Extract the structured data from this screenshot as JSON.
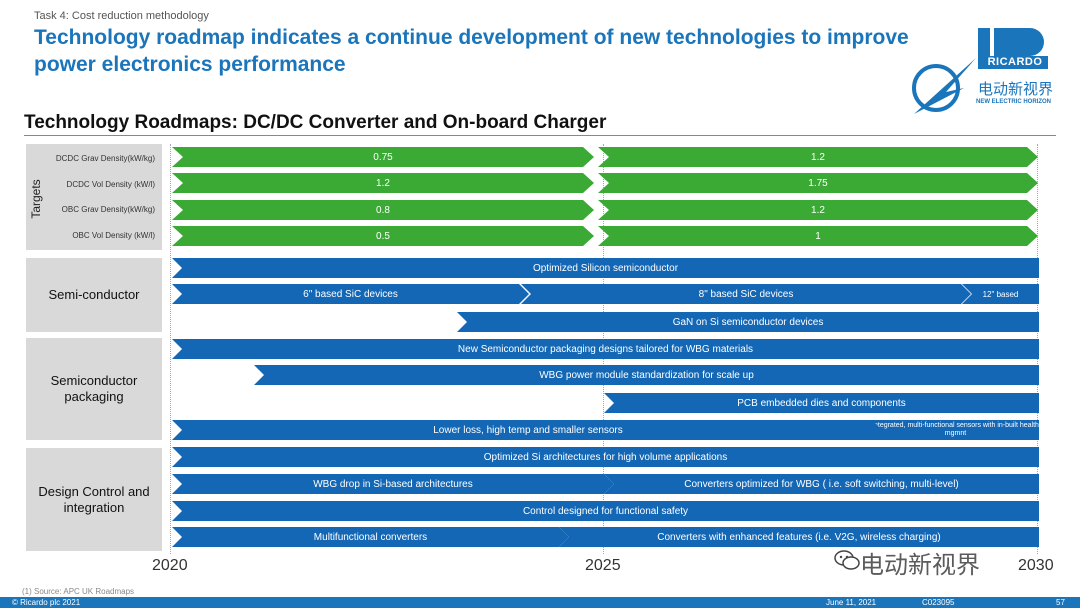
{
  "header": {
    "task": "Task 4: Cost reduction methodology",
    "headline": "Technology roadmap indicates a continue development of new technologies to improve power electronics performance",
    "subtitle": "Technology Roadmaps: DC/DC Converter and On-board Charger"
  },
  "logo": {
    "brand": "RICARDO",
    "chinese": "电动新视界",
    "tagline": "NEW ELECTRIC HORIZON"
  },
  "targets": {
    "title": "Targets",
    "rows": [
      {
        "label": "DCDC Grav Density(kW/kg)",
        "v2020": "0.75",
        "v2025": "1.2"
      },
      {
        "label": "DCDC Vol Density (kW/l)",
        "v2020": "1.2",
        "v2025": "1.75"
      },
      {
        "label": "OBC Grav Density(kW/kg)",
        "v2020": "0.8",
        "v2025": "1.2"
      },
      {
        "label": "OBC Vol Density (kW/l)",
        "v2020": "0.5",
        "v2025": "1"
      }
    ]
  },
  "sections": {
    "semi": "Semi-conductor",
    "packaging": "Semiconductor packaging",
    "design": "Design Control and integration"
  },
  "bars": {
    "silicon": "Optimized Silicon semiconductor",
    "sic6": "6\" based SiC devices",
    "sic8": "8\" based SiC devices",
    "sic12": "12\" based",
    "gan": "GaN on Si semiconductor devices",
    "wbg_pack": "New Semiconductor packaging designs tailored for WBG materials",
    "wbg_module": "WBG power module standardization for scale up",
    "pcb": "PCB embedded dies and components",
    "sensors": "Lower loss, high temp and smaller sensors",
    "integrated": "Integrated, multi-functional sensors with in-built health mgmnt",
    "si_arch": "Optimized Si architectures for high volume applications",
    "wbg_drop": "WBG drop in Si-based architectures",
    "conv_wbg": "Converters optimized for WBG ( i.e. soft switching, multi-level)",
    "safety": "Control designed for functional safety",
    "multi": "Multifunctional converters",
    "enhanced": "Converters with enhanced features (i.e. V2G, wireless charging)"
  },
  "years": [
    "2020",
    "2025",
    "2030"
  ],
  "footnote": "(1) Source: APC UK Roadmaps",
  "footer": {
    "copyright": "© Ricardo plc 2021",
    "date": "June 11, 2021",
    "code": "C023095",
    "page": "57"
  },
  "watermark": "电动新视界",
  "colors": {
    "green": "#3aaa35",
    "blue": "#1367b5",
    "title_blue": "#1b75bb",
    "panel_gray": "#d9d9d9"
  }
}
